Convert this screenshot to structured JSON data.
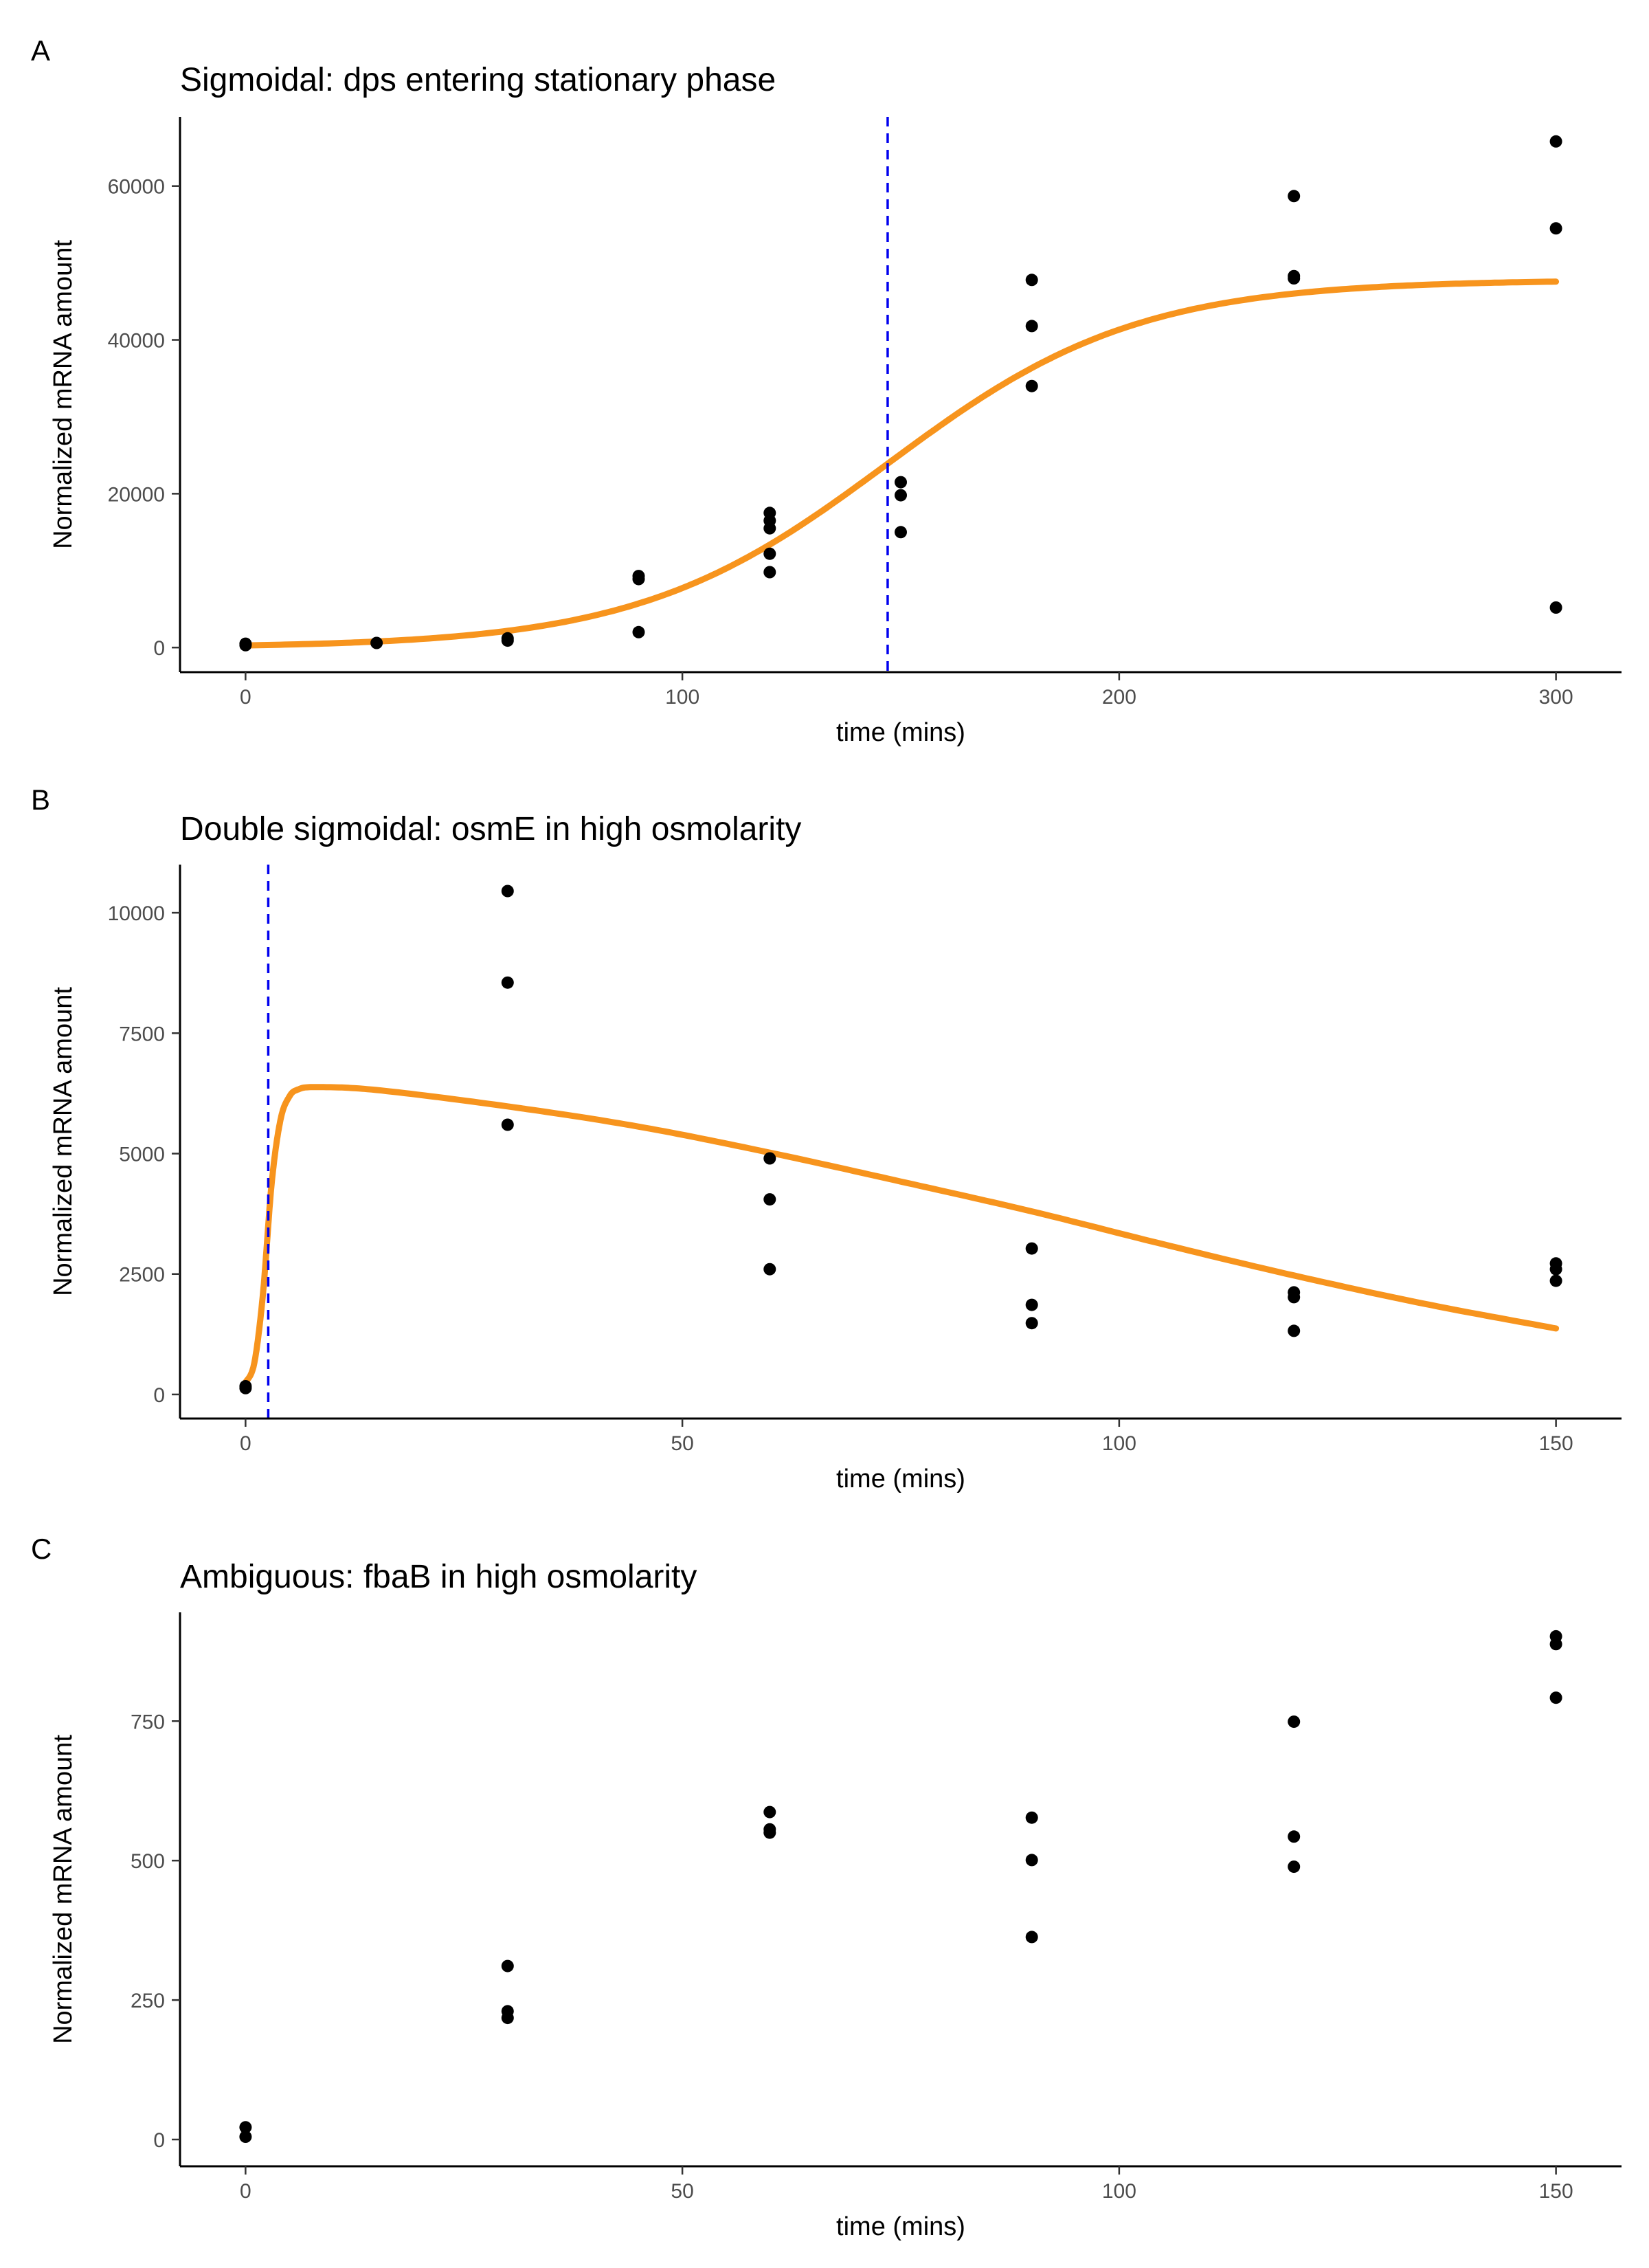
{
  "chart_data": [
    {
      "panel": "A",
      "type": "scatter",
      "title": "Sigmoidal: dps entering stationary phase",
      "xlabel": "time (mins)",
      "ylabel": "Normalized mRNA amount",
      "xlim": [
        -15,
        315
      ],
      "ylim": [
        -3200,
        69000
      ],
      "xticks": [
        0,
        100,
        200,
        300
      ],
      "yticks": [
        0,
        20000,
        40000,
        60000
      ],
      "grid": false,
      "point_color": "#000000",
      "fit_color": "#F7941D",
      "vline_color": "#0000EE",
      "vline_x": 147,
      "points": [
        [
          0,
          300
        ],
        [
          0,
          500
        ],
        [
          30,
          600
        ],
        [
          60,
          900
        ],
        [
          60,
          1200
        ],
        [
          90,
          2000
        ],
        [
          90,
          8900
        ],
        [
          90,
          9300
        ],
        [
          120,
          9800
        ],
        [
          120,
          12200
        ],
        [
          120,
          15500
        ],
        [
          120,
          16500
        ],
        [
          120,
          17500
        ],
        [
          150,
          15000
        ],
        [
          150,
          19800
        ],
        [
          150,
          21500
        ],
        [
          180,
          34000
        ],
        [
          180,
          41800
        ],
        [
          180,
          47800
        ],
        [
          240,
          48000
        ],
        [
          240,
          48300
        ],
        [
          240,
          58700
        ],
        [
          300,
          5200
        ],
        [
          300,
          54500
        ],
        [
          300,
          65800
        ]
      ],
      "fit": {
        "model": "sigmoidal",
        "max": 47800,
        "midpoint": 147,
        "slope": 0.035,
        "x_range": [
          0,
          300
        ]
      }
    },
    {
      "panel": "B",
      "type": "scatter",
      "title": "Double sigmoidal: osmE in high osmolarity",
      "xlabel": "time (mins)",
      "ylabel": "Normalized mRNA amount",
      "xlim": [
        -7.5,
        157.5
      ],
      "ylim": [
        -500,
        11000
      ],
      "xticks": [
        0,
        50,
        100,
        150
      ],
      "yticks": [
        0,
        2500,
        5000,
        7500,
        10000
      ],
      "grid": false,
      "point_color": "#000000",
      "fit_color": "#F7941D",
      "vline_color": "#0000EE",
      "vline_x": 2.6,
      "points": [
        [
          0,
          130
        ],
        [
          0,
          170
        ],
        [
          30,
          5600
        ],
        [
          30,
          8550
        ],
        [
          30,
          10450
        ],
        [
          60,
          2600
        ],
        [
          60,
          4050
        ],
        [
          60,
          4900
        ],
        [
          90,
          1480
        ],
        [
          90,
          1860
        ],
        [
          90,
          3030
        ],
        [
          120,
          1320
        ],
        [
          120,
          2020
        ],
        [
          120,
          2120
        ],
        [
          150,
          2360
        ],
        [
          150,
          2600
        ],
        [
          150,
          2720
        ]
      ],
      "fit": {
        "model": "double_sigmoidal",
        "x_range": [
          0,
          150
        ],
        "curve": [
          [
            0,
            250
          ],
          [
            1,
            650
          ],
          [
            2,
            2100
          ],
          [
            3,
            4400
          ],
          [
            4,
            5700
          ],
          [
            5,
            6180
          ],
          [
            6,
            6330
          ],
          [
            8,
            6380
          ],
          [
            15,
            6320
          ],
          [
            30,
            5980
          ],
          [
            45,
            5560
          ],
          [
            60,
            5020
          ],
          [
            75,
            4420
          ],
          [
            90,
            3800
          ],
          [
            105,
            3120
          ],
          [
            120,
            2470
          ],
          [
            135,
            1880
          ],
          [
            150,
            1370
          ]
        ]
      }
    },
    {
      "panel": "C",
      "type": "scatter",
      "title": "Ambiguous: fbaB in high osmolarity",
      "xlabel": "time (mins)",
      "ylabel": "Normalized mRNA amount",
      "xlim": [
        -7.5,
        157.5
      ],
      "ylim": [
        -48,
        945
      ],
      "xticks": [
        0,
        50,
        100,
        150
      ],
      "yticks": [
        0,
        250,
        500,
        750
      ],
      "grid": false,
      "point_color": "#000000",
      "points": [
        [
          0,
          5
        ],
        [
          0,
          22
        ],
        [
          30,
          218
        ],
        [
          30,
          230
        ],
        [
          30,
          311
        ],
        [
          60,
          550
        ],
        [
          60,
          556
        ],
        [
          60,
          587
        ],
        [
          90,
          363
        ],
        [
          90,
          501
        ],
        [
          90,
          577
        ],
        [
          120,
          489
        ],
        [
          120,
          543
        ],
        [
          120,
          749
        ],
        [
          150,
          792
        ],
        [
          150,
          888
        ],
        [
          150,
          902
        ]
      ]
    }
  ]
}
